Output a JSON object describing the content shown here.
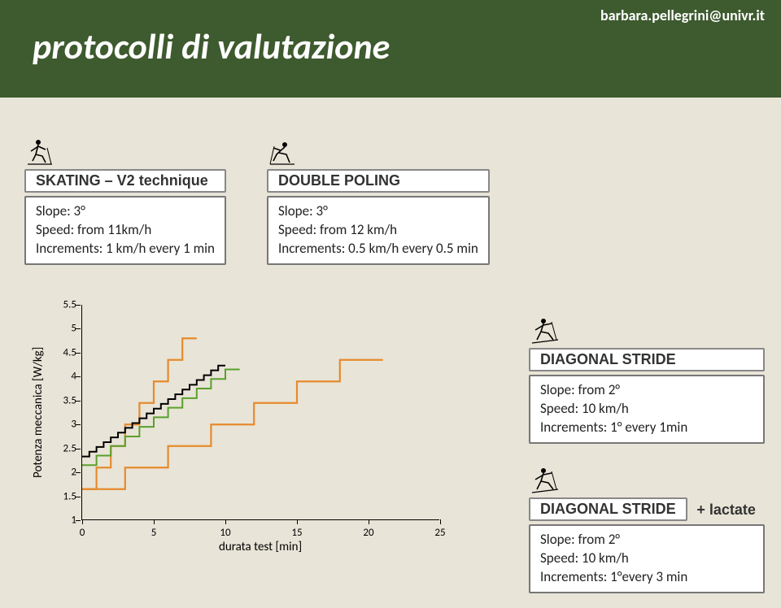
{
  "header": {
    "title": "protocolli di valutazione",
    "contact": "barbara.pellegrini@univr.it",
    "band_color": "#3e5a2f",
    "bg_color": "#e8e4d7"
  },
  "skating": {
    "label": "SKATING – V2  technique",
    "line1": "Slope: 3°",
    "line2": "Speed: from 11km/h",
    "line3": "Increments: 1 km/h every 1 min"
  },
  "double_poling": {
    "label": "DOUBLE POLING",
    "line1": "Slope: 3°",
    "line2": "Speed: from 12 km/h",
    "line3": "Increments: 0.5 km/h every 0.5 min"
  },
  "diagonal1": {
    "label": "DIAGONAL STRIDE",
    "line1": "Slope: from 2°",
    "line2": "Speed: 10 km/h",
    "line3": "Increments: 1° every 1min"
  },
  "diagonal2": {
    "label": "DIAGONAL STRIDE",
    "lactate": "+ lactate",
    "line1": "Slope: from 2°",
    "line2": "Speed: 10 km/h",
    "line3": "Increments: 1°every 3 min"
  },
  "chart": {
    "ylabel": "Potenza meccanica [W/kg]",
    "xlabel": "durata test [min]",
    "xlim": [
      0,
      25
    ],
    "ylim": [
      1,
      5.5
    ],
    "yticks": [
      1,
      1.5,
      2,
      2.5,
      3,
      3.5,
      4,
      4.5,
      5,
      5.5
    ],
    "xticks": [
      0,
      5,
      10,
      15,
      20,
      25
    ],
    "bg": "transparent",
    "colors": {
      "orange": "#e68a2e",
      "black": "#000000",
      "green": "#5aa02c"
    },
    "line_width": 2,
    "series": {
      "diagonal_3min": {
        "type": "step",
        "color": "orange",
        "width": 2.2,
        "points": [
          [
            0,
            1.65
          ],
          [
            3,
            1.65
          ],
          [
            3,
            2.1
          ],
          [
            6,
            2.1
          ],
          [
            6,
            2.55
          ],
          [
            9,
            2.55
          ],
          [
            9,
            3.0
          ],
          [
            12,
            3.0
          ],
          [
            12,
            3.45
          ],
          [
            15,
            3.45
          ],
          [
            15,
            3.9
          ],
          [
            18,
            3.9
          ],
          [
            18,
            4.35
          ],
          [
            21,
            4.35
          ]
        ]
      },
      "diagonal_1min": {
        "type": "step",
        "color": "orange",
        "width": 2.2,
        "points": [
          [
            0,
            1.65
          ],
          [
            1,
            1.65
          ],
          [
            1,
            2.1
          ],
          [
            2,
            2.1
          ],
          [
            2,
            2.55
          ],
          [
            3,
            2.55
          ],
          [
            3,
            3.0
          ],
          [
            4,
            3.0
          ],
          [
            4,
            3.45
          ],
          [
            5,
            3.45
          ],
          [
            5,
            3.9
          ],
          [
            6,
            3.9
          ],
          [
            6,
            4.35
          ],
          [
            7,
            4.35
          ],
          [
            7,
            4.8
          ],
          [
            8,
            4.8
          ]
        ]
      },
      "double_poling": {
        "type": "step",
        "color": "black",
        "width": 2,
        "points": [
          [
            0,
            2.33
          ],
          [
            0.5,
            2.33
          ],
          [
            0.5,
            2.43
          ],
          [
            1,
            2.43
          ],
          [
            1,
            2.53
          ],
          [
            1.5,
            2.53
          ],
          [
            1.5,
            2.63
          ],
          [
            2,
            2.63
          ],
          [
            2,
            2.73
          ],
          [
            2.5,
            2.73
          ],
          [
            2.5,
            2.83
          ],
          [
            3,
            2.83
          ],
          [
            3,
            2.93
          ],
          [
            3.5,
            2.93
          ],
          [
            3.5,
            3.03
          ],
          [
            4,
            3.03
          ],
          [
            4,
            3.13
          ],
          [
            4.5,
            3.13
          ],
          [
            4.5,
            3.23
          ],
          [
            5,
            3.23
          ],
          [
            5,
            3.33
          ],
          [
            5.5,
            3.33
          ],
          [
            5.5,
            3.43
          ],
          [
            6,
            3.43
          ],
          [
            6,
            3.53
          ],
          [
            6.5,
            3.53
          ],
          [
            6.5,
            3.63
          ],
          [
            7,
            3.63
          ],
          [
            7,
            3.73
          ],
          [
            7.5,
            3.73
          ],
          [
            7.5,
            3.83
          ],
          [
            8,
            3.83
          ],
          [
            8,
            3.93
          ],
          [
            8.5,
            3.93
          ],
          [
            8.5,
            4.03
          ],
          [
            9,
            4.03
          ],
          [
            9,
            4.13
          ],
          [
            9.5,
            4.13
          ],
          [
            9.5,
            4.23
          ],
          [
            10,
            4.23
          ]
        ]
      },
      "skating": {
        "type": "step",
        "color": "green",
        "width": 2,
        "points": [
          [
            0,
            2.15
          ],
          [
            1,
            2.15
          ],
          [
            1,
            2.35
          ],
          [
            2,
            2.35
          ],
          [
            2,
            2.55
          ],
          [
            3,
            2.55
          ],
          [
            3,
            2.75
          ],
          [
            4,
            2.75
          ],
          [
            4,
            2.95
          ],
          [
            5,
            2.95
          ],
          [
            5,
            3.15
          ],
          [
            6,
            3.15
          ],
          [
            6,
            3.35
          ],
          [
            7,
            3.35
          ],
          [
            7,
            3.55
          ],
          [
            8,
            3.55
          ],
          [
            8,
            3.75
          ],
          [
            9,
            3.75
          ],
          [
            9,
            3.95
          ],
          [
            10,
            3.95
          ],
          [
            10,
            4.15
          ],
          [
            11,
            4.15
          ]
        ]
      }
    }
  }
}
